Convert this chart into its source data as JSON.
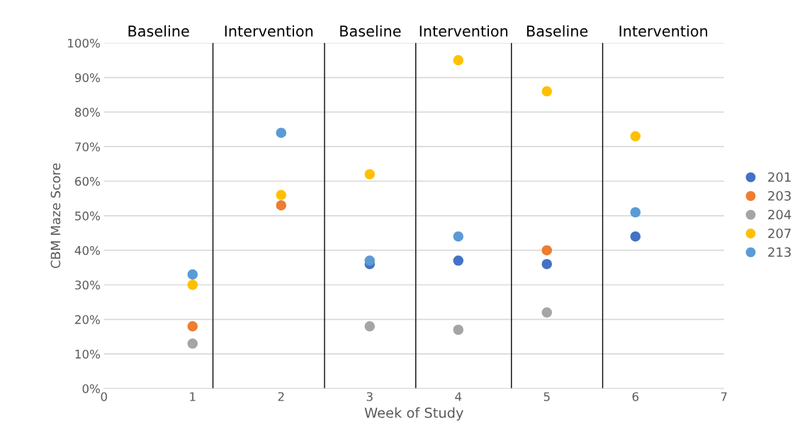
{
  "chart_data": {
    "type": "scatter",
    "xlabel": "Week of Study",
    "ylabel": "CBM Maze Score",
    "x": [
      1,
      2,
      3,
      4,
      5,
      6
    ],
    "series": [
      {
        "name": "201",
        "color": "#4472c4",
        "values": [
          null,
          null,
          36,
          37,
          36,
          44
        ]
      },
      {
        "name": "203",
        "color": "#ed7d31",
        "values": [
          18,
          53,
          null,
          null,
          40,
          null
        ]
      },
      {
        "name": "204",
        "color": "#a5a5a5",
        "values": [
          13,
          null,
          18,
          17,
          22,
          null
        ]
      },
      {
        "name": "207",
        "color": "#ffc000",
        "values": [
          30,
          56,
          62,
          95,
          86,
          73
        ]
      },
      {
        "name": "213",
        "color": "#5b9bd5",
        "values": [
          33,
          74,
          37,
          44,
          null,
          51
        ]
      }
    ],
    "xlim": [
      0,
      7
    ],
    "xticks": [
      0,
      1,
      2,
      3,
      4,
      5,
      6,
      7
    ],
    "ylim": [
      0,
      100
    ],
    "yticks": [
      {
        "value": 0,
        "label": "0%"
      },
      {
        "value": 10,
        "label": "10%"
      },
      {
        "value": 20,
        "label": "20%"
      },
      {
        "value": 30,
        "label": "30%"
      },
      {
        "value": 40,
        "label": "40%"
      },
      {
        "value": 50,
        "label": "50%"
      },
      {
        "value": 60,
        "label": "60%"
      },
      {
        "value": 70,
        "label": "70%"
      },
      {
        "value": 80,
        "label": "80%"
      },
      {
        "value": 90,
        "label": "90%"
      },
      {
        "value": 100,
        "label": "100%"
      }
    ],
    "grid": "y",
    "legend": "right",
    "marker": "circle",
    "ref_lines": [
      {
        "axis": "x",
        "value": 1.23,
        "color": "#000000"
      },
      {
        "axis": "x",
        "value": 2.49,
        "color": "#000000"
      },
      {
        "axis": "x",
        "value": 3.52,
        "color": "#000000"
      },
      {
        "axis": "x",
        "value": 4.6,
        "color": "#000000"
      },
      {
        "axis": "x",
        "value": 5.63,
        "color": "#000000"
      }
    ],
    "annotations": [
      "Baseline",
      "Intervention",
      "Baseline",
      "Intervention",
      "Baseline",
      "Intervention"
    ]
  }
}
